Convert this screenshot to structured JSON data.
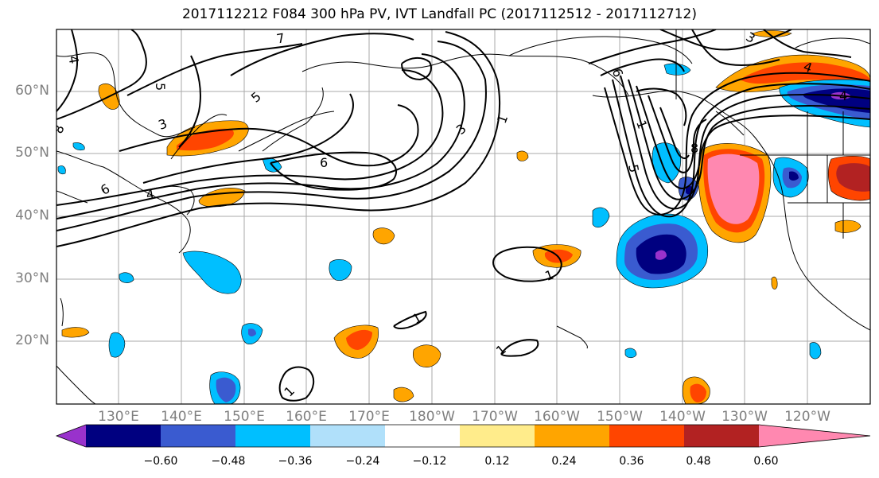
{
  "title": "2017112212 F084 300 hPa PV, IVT Landfall PC (2017112512 - 2017112712)",
  "lat_labels": [
    "60°N",
    "50°N",
    "40°N",
    "30°N",
    "20°N"
  ],
  "lon_labels": [
    "130°E",
    "140°E",
    "150°E",
    "160°E",
    "170°E",
    "180°W",
    "170°W",
    "160°W",
    "150°W",
    "140°W",
    "130°W",
    "120°W"
  ],
  "colorbar": {
    "ticks": [
      "−0.60",
      "−0.48",
      "−0.36",
      "−0.24",
      "−0.12",
      "0.12",
      "0.24",
      "0.36",
      "0.48",
      "0.60"
    ],
    "colors": [
      "#9932CC",
      "#000080",
      "#3A5BD0",
      "#00BFFF",
      "#B0E0FA",
      "#FFFFFF",
      "#FFEC8B",
      "#FFA500",
      "#FF4500",
      "#B22222",
      "#FF88B0"
    ]
  },
  "contour_labels": [
    "6",
    "5",
    "4",
    "3",
    "1",
    "7",
    "8",
    "6",
    "5",
    "4",
    "3",
    "1",
    "1",
    "1",
    "1",
    "6",
    "8",
    "5",
    "3",
    "4",
    "4",
    "1"
  ]
}
